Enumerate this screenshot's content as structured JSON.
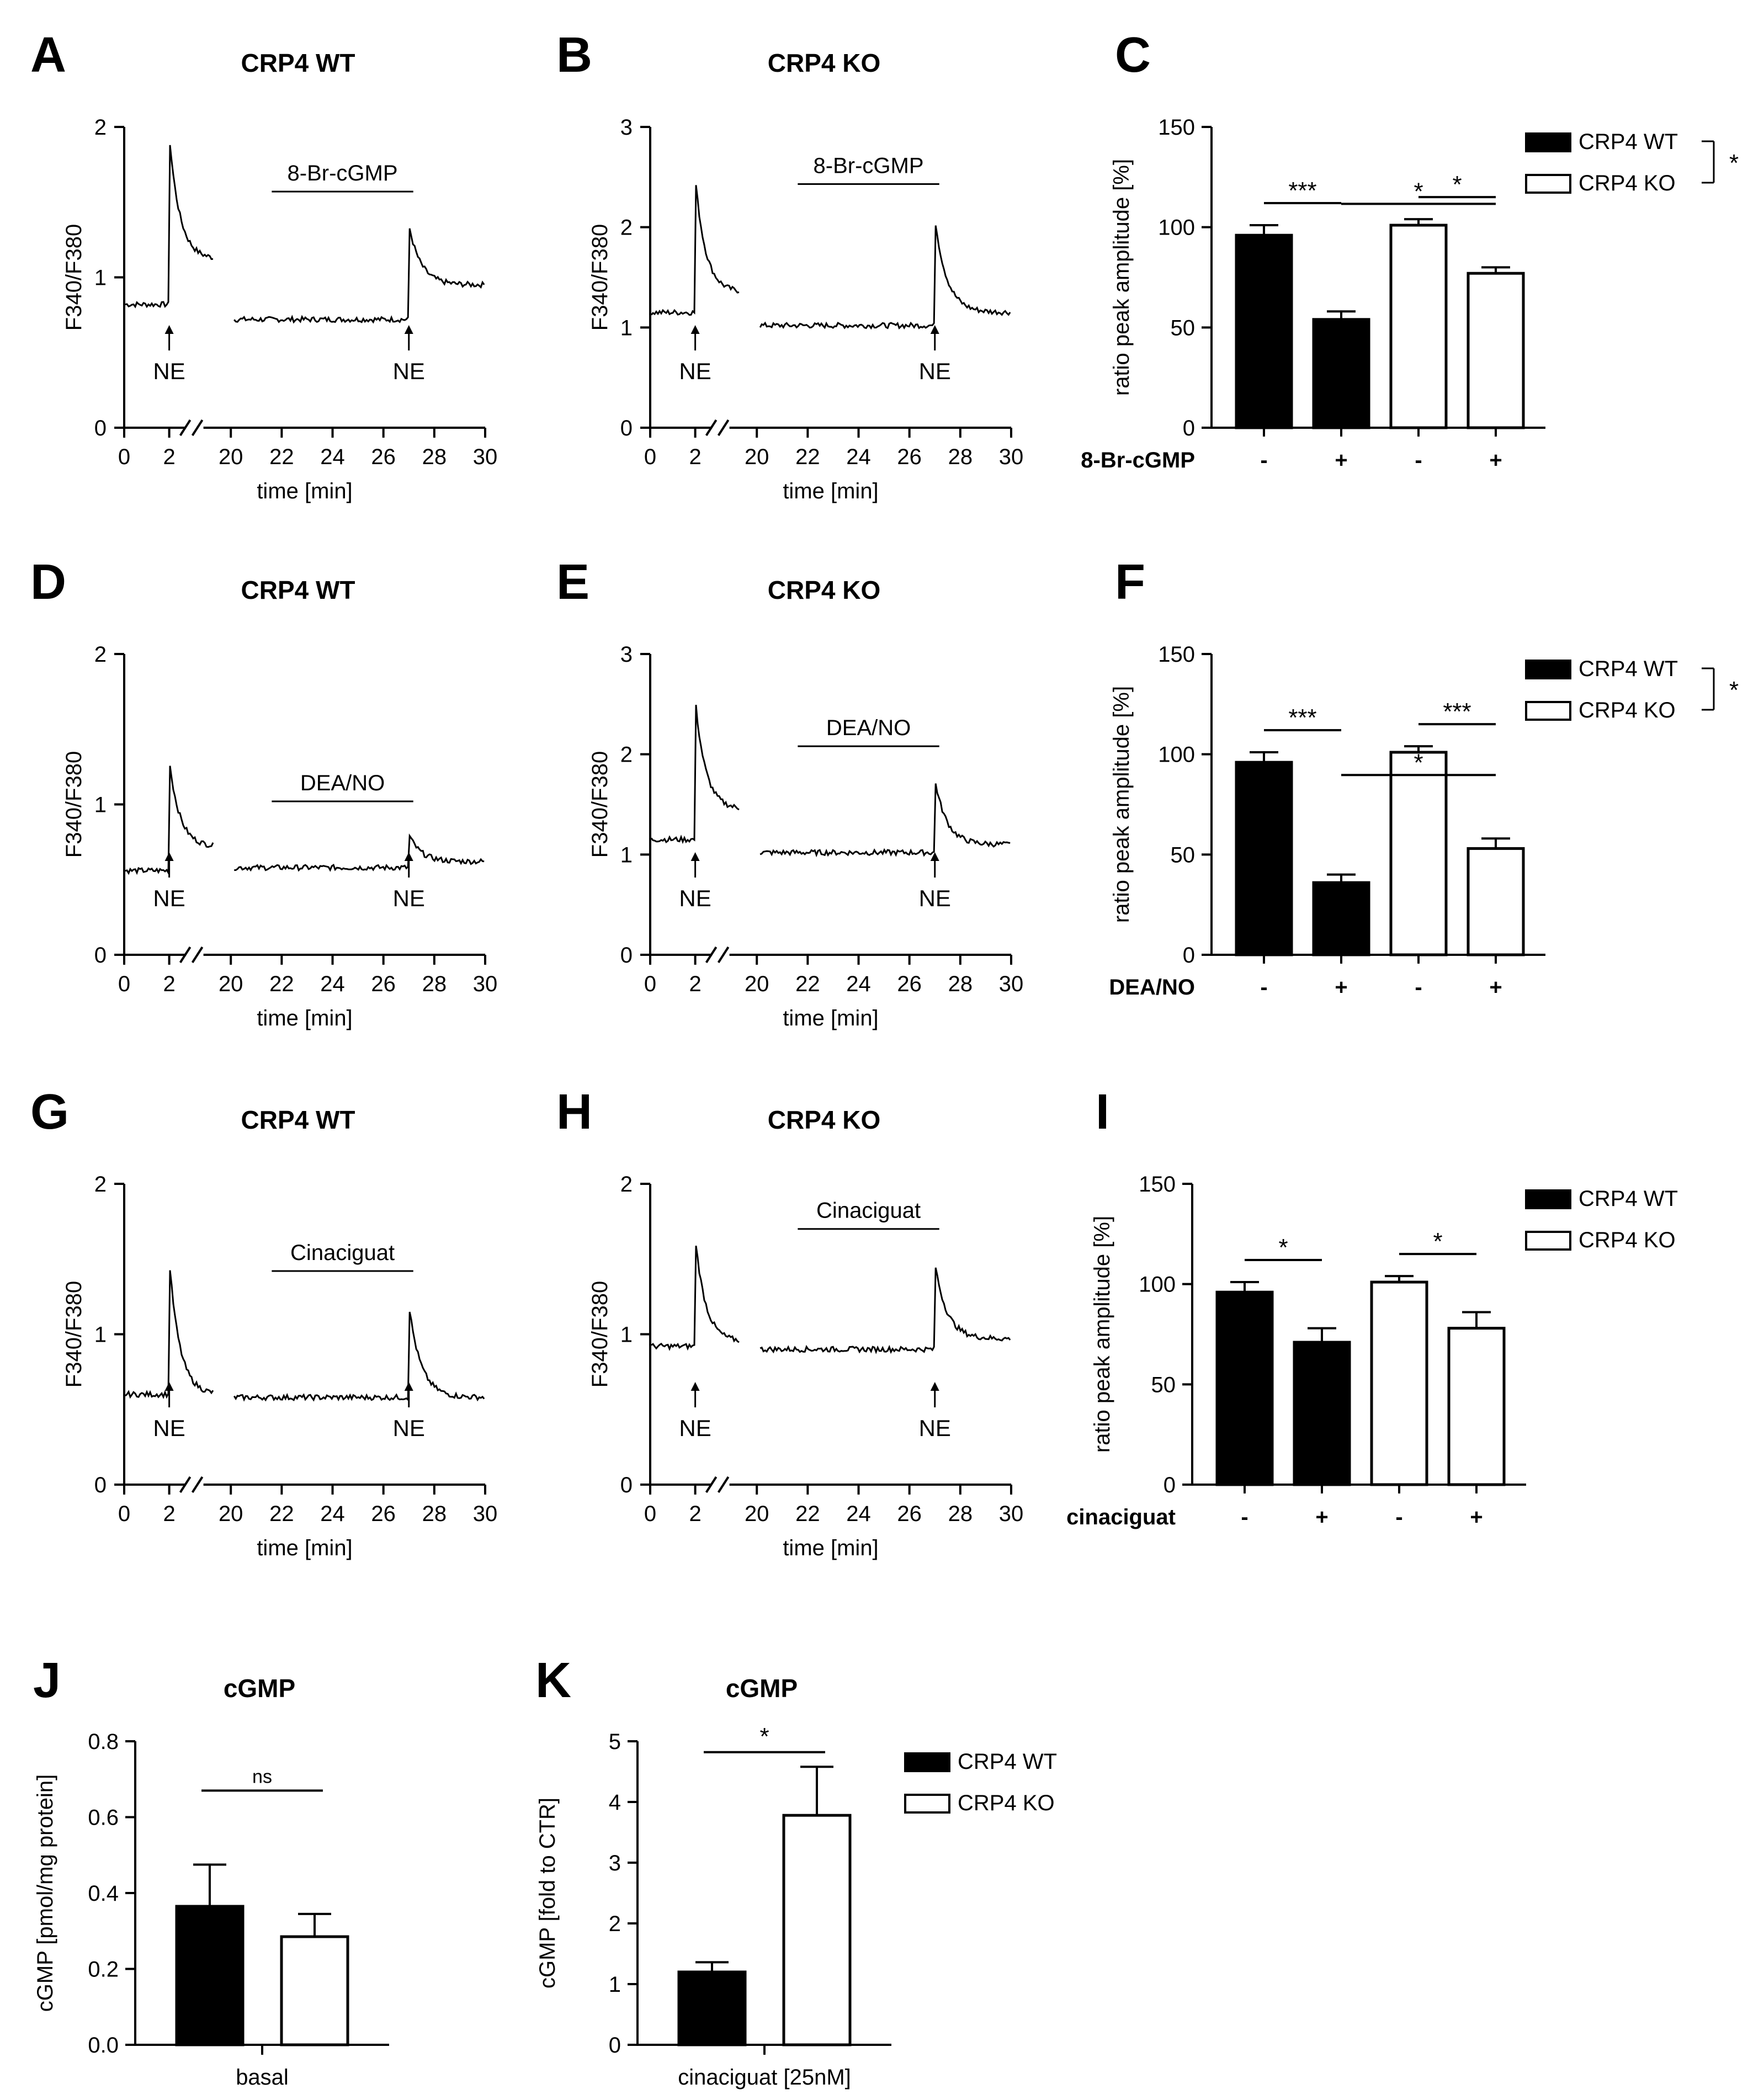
{
  "figure": {
    "traces": [
      {
        "letter": "A",
        "title": "CRP4 WT",
        "treatment": "8-Br-cGMP",
        "ymax": 2,
        "yticks": [
          0,
          1,
          2
        ],
        "baseline1": 0.82,
        "peak1": 1.95,
        "plateau1": 1.12,
        "baseline2": 0.72,
        "peak2": 1.35,
        "plateau2": 0.95,
        "xticks": [
          "0",
          "2",
          "20",
          "22",
          "24",
          "26",
          "28",
          "30"
        ],
        "stim_label": "NE",
        "xlabel": "time [min]",
        "ylabel": "F340/F380"
      },
      {
        "letter": "B",
        "title": "CRP4 KO",
        "treatment": "8-Br-cGMP",
        "ymax": 3,
        "yticks": [
          0,
          1,
          2,
          3
        ],
        "baseline1": 1.15,
        "peak1": 2.5,
        "plateau1": 1.35,
        "baseline2": 1.02,
        "peak2": 2.1,
        "plateau2": 1.15,
        "xticks": [
          "0",
          "2",
          "20",
          "22",
          "24",
          "26",
          "28",
          "30"
        ],
        "stim_label": "NE",
        "xlabel": "time [min]",
        "ylabel": "F340/F380"
      },
      {
        "letter": "D",
        "title": "CRP4 WT",
        "treatment": "DEA/NO",
        "ymax": 2,
        "yticks": [
          0,
          1,
          2
        ],
        "baseline1": 0.56,
        "peak1": 1.3,
        "plateau1": 0.72,
        "baseline2": 0.58,
        "peak2": 0.8,
        "plateau2": 0.62,
        "xticks": [
          "0",
          "2",
          "20",
          "22",
          "24",
          "26",
          "28",
          "30"
        ],
        "stim_label": "NE",
        "xlabel": "time [min]",
        "ylabel": "F340/F380"
      },
      {
        "letter": "E",
        "title": "CRP4 KO",
        "treatment": "DEA/NO",
        "ymax": 3,
        "yticks": [
          0,
          1,
          2,
          3
        ],
        "baseline1": 1.15,
        "peak1": 2.55,
        "plateau1": 1.45,
        "baseline2": 1.02,
        "peak2": 1.75,
        "plateau2": 1.1,
        "xticks": [
          "0",
          "2",
          "20",
          "22",
          "24",
          "26",
          "28",
          "30"
        ],
        "stim_label": "NE",
        "xlabel": "time [min]",
        "ylabel": "F340/F380"
      },
      {
        "letter": "G",
        "title": "CRP4 WT",
        "treatment": "Cinaciguat",
        "ymax": 2,
        "yticks": [
          0,
          1,
          2
        ],
        "baseline1": 0.6,
        "peak1": 1.5,
        "plateau1": 0.6,
        "baseline2": 0.58,
        "peak2": 1.2,
        "plateau2": 0.58,
        "xticks": [
          "0",
          "2",
          "20",
          "22",
          "24",
          "26",
          "28",
          "30"
        ],
        "stim_label": "NE",
        "xlabel": "time [min]",
        "ylabel": "F340/F380"
      },
      {
        "letter": "H",
        "title": "CRP4 KO",
        "treatment": "Cinaciguat",
        "ymax": 2,
        "yticks": [
          0,
          1,
          2
        ],
        "baseline1": 0.92,
        "peak1": 1.65,
        "plateau1": 0.95,
        "baseline2": 0.9,
        "peak2": 1.48,
        "plateau2": 0.97,
        "xticks": [
          "0",
          "2",
          "20",
          "22",
          "24",
          "26",
          "28",
          "30"
        ],
        "stim_label": "NE",
        "xlabel": "time [min]",
        "ylabel": "F340/F380"
      }
    ],
    "bars": [
      {
        "letter": "C",
        "ylabel": "ratio peak amplitude [%]",
        "ymax": 150,
        "yticks": [
          0,
          50,
          100,
          150
        ],
        "cond_label": "8-Br-cGMP",
        "cond_ticks": [
          "-",
          "+",
          "-",
          "+"
        ],
        "values": [
          96,
          54,
          101,
          77
        ],
        "errors": [
          5,
          4,
          3,
          3
        ],
        "sig": [
          {
            "from": 0,
            "to": 1,
            "text": "***"
          },
          {
            "from": 2,
            "to": 3,
            "text": "*"
          },
          {
            "from": 1,
            "to": 3,
            "text": "*"
          }
        ],
        "legend": [
          "CRP4 WT",
          "CRP4 KO"
        ],
        "legend_sig": "*"
      },
      {
        "letter": "F",
        "ylabel": "ratio peak amplitude [%]",
        "ymax": 150,
        "yticks": [
          0,
          50,
          100,
          150
        ],
        "cond_label": "DEA/NO",
        "cond_ticks": [
          "-",
          "+",
          "-",
          "+"
        ],
        "values": [
          96,
          36,
          101,
          53
        ],
        "errors": [
          5,
          4,
          3,
          5
        ],
        "sig": [
          {
            "from": 0,
            "to": 1,
            "text": "***"
          },
          {
            "from": 2,
            "to": 3,
            "text": "***"
          },
          {
            "from": 1,
            "to": 3,
            "text": "*"
          }
        ],
        "legend": [
          "CRP4 WT",
          "CRP4 KO"
        ],
        "legend_sig": "*"
      },
      {
        "letter": "I",
        "ylabel": "ratio peak amplitude [%]",
        "ymax": 150,
        "yticks": [
          0,
          50,
          100,
          150
        ],
        "cond_label": "cinaciguat",
        "cond_ticks": [
          "-",
          "+",
          "-",
          "+"
        ],
        "values": [
          96,
          71,
          101,
          78
        ],
        "errors": [
          5,
          7,
          3,
          8
        ],
        "sig": [
          {
            "from": 0,
            "to": 1,
            "text": "*"
          },
          {
            "from": 2,
            "to": 3,
            "text": "*"
          }
        ],
        "legend": [
          "CRP4 WT",
          "CRP4 KO"
        ],
        "legend_sig": ""
      },
      {
        "letter": "J",
        "title": "cGMP",
        "ylabel": "cGMP [pmol/mg protein]",
        "ymax": 0.8,
        "yticks": [
          0.0,
          0.2,
          0.4,
          0.6,
          0.8
        ],
        "ytick_labels": [
          "0.0",
          "0.2",
          "0.4",
          "0.6",
          "0.8"
        ],
        "category": "basal",
        "values": [
          0.365,
          0.285
        ],
        "errors": [
          0.11,
          0.06
        ],
        "sig": [
          {
            "from": 0,
            "to": 1,
            "text": "ns"
          }
        ]
      },
      {
        "letter": "K",
        "title": "cGMP",
        "ylabel": "cGMP [fold to CTR]",
        "ymax": 5,
        "yticks": [
          0,
          1,
          2,
          3,
          4,
          5
        ],
        "ytick_labels": [
          "0",
          "1",
          "2",
          "3",
          "4",
          "5"
        ],
        "category": "cinaciguat [25nM]",
        "values": [
          1.2,
          3.78
        ],
        "errors": [
          0.16,
          0.8
        ],
        "sig": [
          {
            "from": 0,
            "to": 1,
            "text": "*"
          }
        ],
        "legend": [
          "CRP4 WT",
          "CRP4 KO"
        ]
      }
    ]
  },
  "chart_data": [
    {
      "type": "line",
      "panel": "A",
      "title": "CRP4 WT",
      "xlabel": "time [min]",
      "ylabel": "F340/F380",
      "annotation": "8-Br-cGMP",
      "stimulus": "NE at 2 and 27 min",
      "ylim": [
        0,
        2
      ]
    },
    {
      "type": "line",
      "panel": "B",
      "title": "CRP4 KO",
      "xlabel": "time [min]",
      "ylabel": "F340/F380",
      "annotation": "8-Br-cGMP",
      "stimulus": "NE at 2 and 27 min",
      "ylim": [
        0,
        3
      ]
    },
    {
      "type": "bar",
      "panel": "C",
      "categories": [
        "CRP4 WT -",
        "CRP4 WT +",
        "CRP4 KO -",
        "CRP4 KO +"
      ],
      "values": [
        96,
        54,
        101,
        77
      ],
      "ylabel": "ratio peak amplitude [%]",
      "xlabel": "8-Br-cGMP",
      "ylim": [
        0,
        150
      ]
    },
    {
      "type": "line",
      "panel": "D",
      "title": "CRP4 WT",
      "xlabel": "time [min]",
      "ylabel": "F340/F380",
      "annotation": "DEA/NO",
      "stimulus": "NE at 2 and 27 min",
      "ylim": [
        0,
        2
      ]
    },
    {
      "type": "line",
      "panel": "E",
      "title": "CRP4 KO",
      "xlabel": "time [min]",
      "ylabel": "F340/F380",
      "annotation": "DEA/NO",
      "stimulus": "NE at 2 and 27 min",
      "ylim": [
        0,
        3
      ]
    },
    {
      "type": "bar",
      "panel": "F",
      "categories": [
        "CRP4 WT -",
        "CRP4 WT +",
        "CRP4 KO -",
        "CRP4 KO +"
      ],
      "values": [
        96,
        36,
        101,
        53
      ],
      "ylabel": "ratio peak amplitude [%]",
      "xlabel": "DEA/NO",
      "ylim": [
        0,
        150
      ]
    },
    {
      "type": "line",
      "panel": "G",
      "title": "CRP4 WT",
      "xlabel": "time [min]",
      "ylabel": "F340/F380",
      "annotation": "Cinaciguat",
      "stimulus": "NE at 2 and 27 min",
      "ylim": [
        0,
        2
      ]
    },
    {
      "type": "line",
      "panel": "H",
      "title": "CRP4 KO",
      "xlabel": "time [min]",
      "ylabel": "F340/F380",
      "annotation": "Cinaciguat",
      "stimulus": "NE at 2 and 27 min",
      "ylim": [
        0,
        2
      ]
    },
    {
      "type": "bar",
      "panel": "I",
      "categories": [
        "CRP4 WT -",
        "CRP4 WT +",
        "CRP4 KO -",
        "CRP4 KO +"
      ],
      "values": [
        96,
        71,
        101,
        78
      ],
      "ylabel": "ratio peak amplitude [%]",
      "xlabel": "cinaciguat",
      "ylim": [
        0,
        150
      ]
    },
    {
      "type": "bar",
      "panel": "J",
      "title": "cGMP",
      "categories": [
        "CRP4 WT",
        "CRP4 KO"
      ],
      "values": [
        0.365,
        0.285
      ],
      "ylabel": "cGMP [pmol/mg protein]",
      "xlabel": "basal",
      "ylim": [
        0,
        0.8
      ]
    },
    {
      "type": "bar",
      "panel": "K",
      "title": "cGMP",
      "categories": [
        "CRP4 WT",
        "CRP4 KO"
      ],
      "values": [
        1.2,
        3.78
      ],
      "ylabel": "cGMP [fold to CTR]",
      "xlabel": "cinaciguat [25nM]",
      "ylim": [
        0,
        5
      ]
    }
  ]
}
